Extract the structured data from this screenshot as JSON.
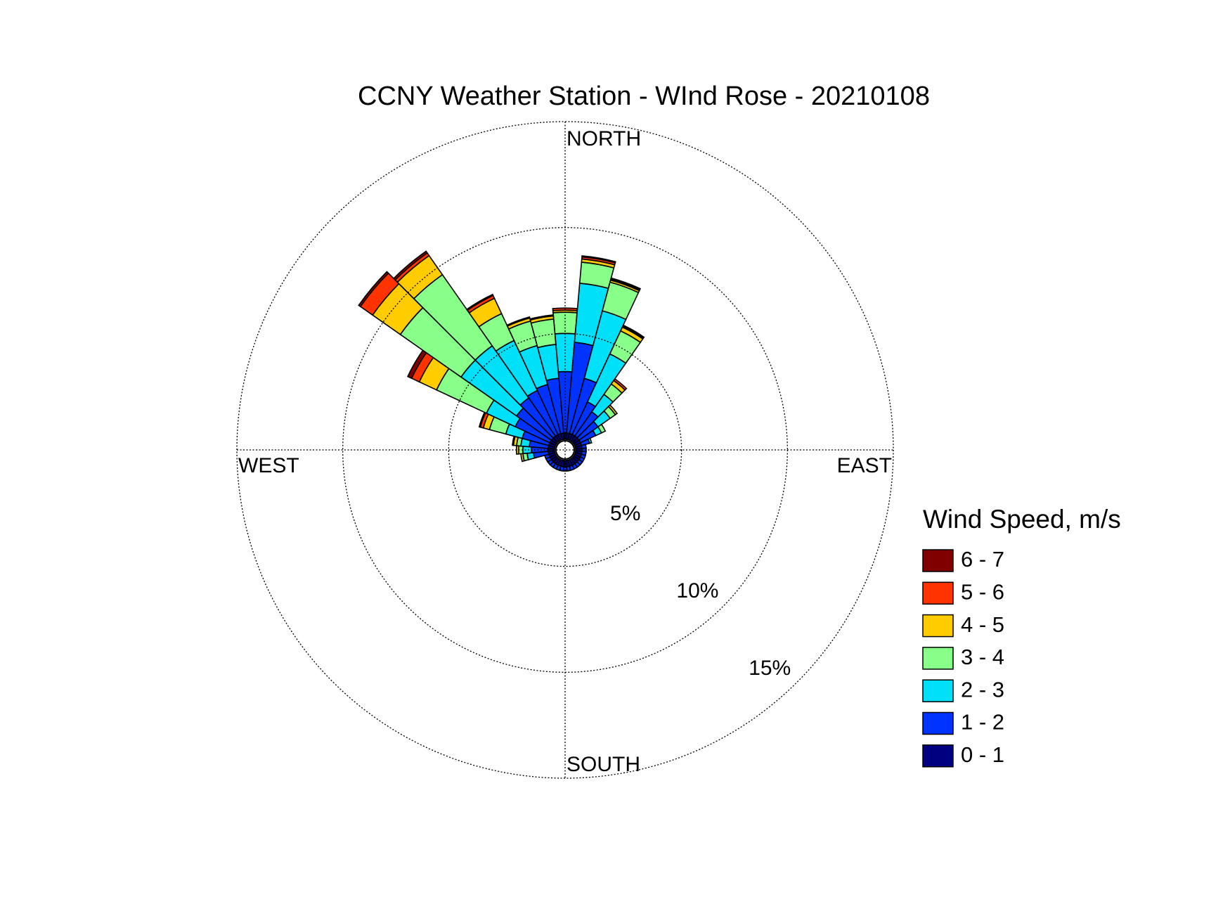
{
  "chart_data": {
    "type": "windrose",
    "title": "CCNY Weather Station - WInd Rose - 20210108",
    "direction_labels": {
      "north": "NORTH",
      "east": "EAST",
      "south": "SOUTH",
      "west": "WEST"
    },
    "legend_title": "Wind Speed, m/s",
    "directions": [
      0,
      10,
      20,
      30,
      40,
      50,
      60,
      70,
      80,
      90,
      100,
      110,
      120,
      130,
      140,
      150,
      160,
      170,
      180,
      190,
      200,
      210,
      220,
      230,
      240,
      250,
      260,
      270,
      280,
      290,
      300,
      310,
      320,
      330,
      340,
      350
    ],
    "rlim": [
      0,
      15
    ],
    "rticks": [
      {
        "value": 5,
        "label": "5%"
      },
      {
        "value": 10,
        "label": "10%"
      },
      {
        "value": 15,
        "label": "15%"
      }
    ],
    "grid": true,
    "series": [
      {
        "name": "0 - 1",
        "color": "#000080",
        "values": [
          0.3,
          0.3,
          0.3,
          0.3,
          0.3,
          0.3,
          0.3,
          0.3,
          0.3,
          0.3,
          0.3,
          0.3,
          0.3,
          0.3,
          0.3,
          0.3,
          0.3,
          0.3,
          0.3,
          0.3,
          0.3,
          0.3,
          0.3,
          0.3,
          0.3,
          0.3,
          0.3,
          0.3,
          0.3,
          0.3,
          0.3,
          0.3,
          0.3,
          0.3,
          0.3,
          0.3
        ]
      },
      {
        "name": "1 - 2",
        "color": "#0033ff",
        "values": [
          2.9,
          4.3,
          2.7,
          1.7,
          1.4,
          1.1,
          0.8,
          0.4,
          0.2,
          0.2,
          0.2,
          0.2,
          0.2,
          0.2,
          0.2,
          0.2,
          0.2,
          0.2,
          0.2,
          0.2,
          0.2,
          0.2,
          0.2,
          0.2,
          0.2,
          0.2,
          0.7,
          0.8,
          0.9,
          1.3,
          1.8,
          2.0,
          2.2,
          2.3,
          2.4,
          2.6
        ]
      },
      {
        "name": "2 - 3",
        "color": "#00e0f8",
        "values": [
          1.8,
          2.8,
          3.3,
          2.5,
          1.0,
          0.7,
          0.3,
          0.1,
          0,
          0,
          0,
          0,
          0,
          0,
          0,
          0,
          0,
          0,
          0,
          0,
          0,
          0,
          0,
          0,
          0,
          0,
          0.3,
          0.4,
          0.4,
          0.8,
          1.5,
          3.2,
          3.0,
          2.6,
          1.9,
          1.6
        ]
      },
      {
        "name": "3 - 4",
        "color": "#88ff88",
        "values": [
          1.0,
          1.0,
          1.4,
          1.2,
          0.6,
          0.3,
          0.2,
          0,
          0,
          0,
          0,
          0,
          0,
          0,
          0,
          0,
          0,
          0,
          0,
          0,
          0,
          0,
          0,
          0,
          0,
          0,
          0.2,
          0.2,
          0.2,
          0.8,
          2.6,
          3.5,
          4.1,
          1.4,
          1.2,
          1.2
        ]
      },
      {
        "name": "4 - 5",
        "color": "#ffcc00",
        "values": [
          0.1,
          0.15,
          0.1,
          0.2,
          0.2,
          0.1,
          0,
          0,
          0,
          0,
          0,
          0,
          0,
          0,
          0,
          0,
          0,
          0,
          0,
          0,
          0,
          0,
          0,
          0,
          0,
          0,
          0.1,
          0.1,
          0.15,
          0.3,
          0.9,
          1.6,
          1.1,
          0.8,
          0.15,
          0.15
        ]
      },
      {
        "name": "5 - 6",
        "color": "#ff3300",
        "values": [
          0.1,
          0.1,
          0.05,
          0.05,
          0.1,
          0,
          0,
          0,
          0,
          0,
          0,
          0,
          0,
          0,
          0,
          0,
          0,
          0,
          0,
          0,
          0,
          0,
          0,
          0,
          0,
          0,
          0,
          0,
          0.05,
          0.15,
          0.4,
          0.7,
          0.15,
          0.15,
          0.05,
          0.05
        ]
      },
      {
        "name": "6 - 7",
        "color": "#800000",
        "values": [
          0,
          0.05,
          0.05,
          0.05,
          0,
          0,
          0,
          0,
          0,
          0,
          0,
          0,
          0,
          0,
          0,
          0,
          0,
          0,
          0,
          0,
          0,
          0,
          0,
          0,
          0,
          0,
          0,
          0,
          0,
          0.05,
          0.2,
          0.1,
          0.1,
          0.05,
          0,
          0
        ]
      }
    ]
  }
}
